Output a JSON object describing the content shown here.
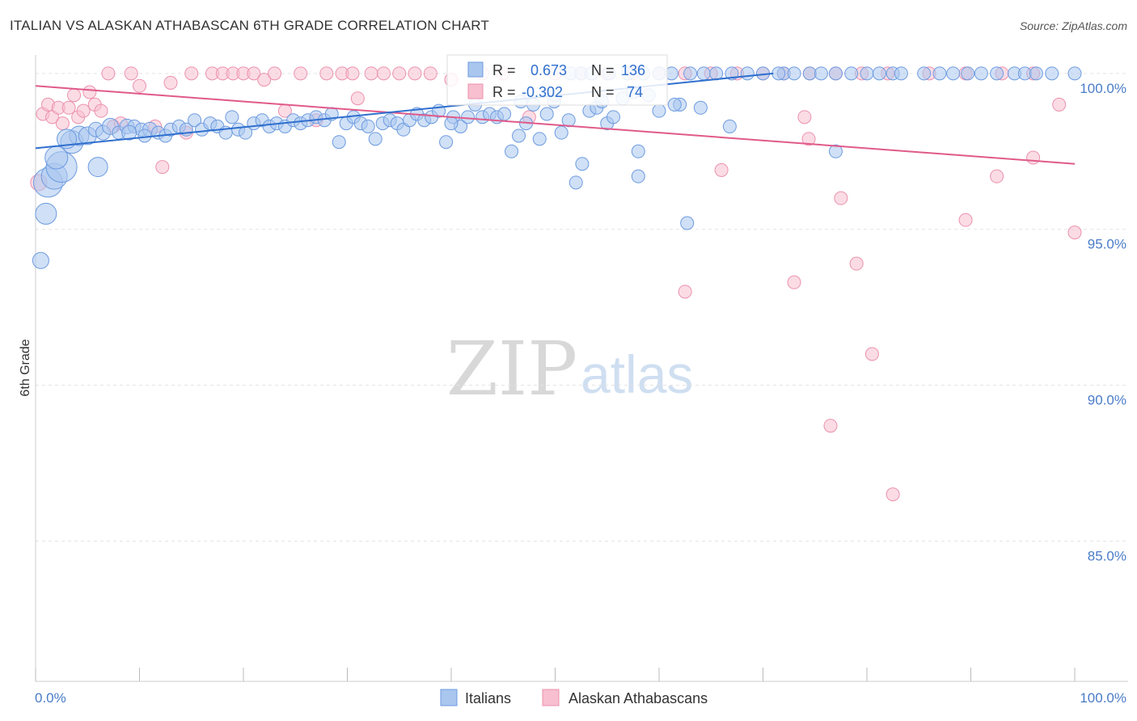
{
  "title": "ITALIAN VS ALASKAN ATHABASCAN 6TH GRADE CORRELATION CHART",
  "source": "Source: ZipAtlas.com",
  "colors": {
    "blue_fill": "#a9c6ee",
    "blue_stroke": "#6d9be0",
    "blue_line": "#2f6fce",
    "pink_fill": "#f7bfcf",
    "pink_stroke": "#ec91ae",
    "pink_line": "#e05a8a",
    "axis_label": "#4a7cc7",
    "grid": "#e3e3e3"
  },
  "legend": {
    "row1": {
      "r_label": "R =",
      "r_value": "0.673",
      "n_label": "N =",
      "n_value": "136"
    },
    "row2": {
      "r_label": "R =",
      "r_value": "-0.302",
      "n_label": "N =",
      "n_value": "74"
    }
  },
  "watermark": {
    "zip": "ZIP",
    "atlas": "atlas"
  },
  "chart_data": {
    "type": "scatter",
    "title": "ITALIAN VS ALASKAN ATHABASCAN 6TH GRADE CORRELATION CHART",
    "xlabel": "",
    "ylabel": "6th Grade",
    "xlim": [
      0,
      100
    ],
    "ylim": [
      80.5,
      100.8
    ],
    "x_tick_labels": [
      "0.0%",
      "100.0%"
    ],
    "y_ticks": [
      100,
      95,
      90,
      85
    ],
    "y_tick_labels": [
      "100.0%",
      "95.0%",
      "90.0%",
      "85.0%"
    ],
    "grid": true,
    "legend_position": "bottom",
    "series": [
      {
        "name": "Italians",
        "color": "#a9c6ee",
        "trend": {
          "x": [
            0,
            71
          ],
          "y": [
            97.6,
            100.0
          ]
        },
        "points": [
          [
            0.5,
            94.0,
            10
          ],
          [
            1.0,
            95.5,
            13
          ],
          [
            1.2,
            96.5,
            18
          ],
          [
            1.8,
            96.7,
            16
          ],
          [
            2.5,
            97.0,
            19
          ],
          [
            3.5,
            97.8,
            14
          ],
          [
            4.2,
            98.0,
            12
          ],
          [
            5.0,
            98.0,
            11
          ],
          [
            5.8,
            98.2,
            9
          ],
          [
            6.5,
            98.1,
            9
          ],
          [
            7.2,
            98.3,
            10
          ],
          [
            8.0,
            98.1,
            8
          ],
          [
            8.8,
            98.3,
            9
          ],
          [
            9.5,
            98.3,
            8
          ],
          [
            10.2,
            98.2,
            8
          ],
          [
            11.0,
            98.2,
            9
          ],
          [
            11.8,
            98.1,
            8
          ],
          [
            12.5,
            98.0,
            8
          ],
          [
            13.0,
            98.2,
            8
          ],
          [
            13.8,
            98.3,
            8
          ],
          [
            14.5,
            98.2,
            8
          ],
          [
            15.3,
            98.5,
            8
          ],
          [
            16.0,
            98.2,
            8
          ],
          [
            16.8,
            98.4,
            8
          ],
          [
            17.5,
            98.3,
            8
          ],
          [
            18.3,
            98.1,
            8
          ],
          [
            18.9,
            98.6,
            8
          ],
          [
            19.5,
            98.2,
            8
          ],
          [
            20.2,
            98.1,
            8
          ],
          [
            21.0,
            98.4,
            8
          ],
          [
            21.8,
            98.5,
            8
          ],
          [
            22.5,
            98.3,
            8
          ],
          [
            23.2,
            98.4,
            8
          ],
          [
            24.0,
            98.3,
            8
          ],
          [
            24.8,
            98.5,
            8
          ],
          [
            25.5,
            98.4,
            8
          ],
          [
            26.2,
            98.5,
            8
          ],
          [
            27.0,
            98.6,
            8
          ],
          [
            27.8,
            98.5,
            8
          ],
          [
            28.5,
            98.7,
            8
          ],
          [
            29.2,
            97.8,
            8
          ],
          [
            29.9,
            98.4,
            8
          ],
          [
            30.6,
            98.6,
            8
          ],
          [
            31.3,
            98.4,
            8
          ],
          [
            32.0,
            98.3,
            8
          ],
          [
            32.7,
            97.9,
            8
          ],
          [
            33.4,
            98.4,
            8
          ],
          [
            34.1,
            98.5,
            8
          ],
          [
            34.8,
            98.4,
            8
          ],
          [
            35.4,
            98.2,
            8
          ],
          [
            36.0,
            98.5,
            8
          ],
          [
            36.7,
            98.7,
            8
          ],
          [
            37.4,
            98.5,
            8
          ],
          [
            38.1,
            98.6,
            8
          ],
          [
            38.8,
            98.8,
            8
          ],
          [
            39.5,
            97.8,
            8
          ],
          [
            40.2,
            98.6,
            8
          ],
          [
            40.9,
            98.3,
            8
          ],
          [
            41.6,
            98.6,
            8
          ],
          [
            42.3,
            99.0,
            8
          ],
          [
            43.0,
            98.6,
            8
          ],
          [
            43.7,
            98.7,
            8
          ],
          [
            44.4,
            98.6,
            8
          ],
          [
            45.1,
            98.7,
            8
          ],
          [
            45.8,
            97.5,
            8
          ],
          [
            46.5,
            98.0,
            8
          ],
          [
            47.2,
            98.4,
            8
          ],
          [
            47.9,
            99.0,
            8
          ],
          [
            48.5,
            97.9,
            8
          ],
          [
            49.2,
            98.7,
            8
          ],
          [
            49.9,
            99.1,
            8
          ],
          [
            50.6,
            98.1,
            8
          ],
          [
            51.3,
            98.5,
            8
          ],
          [
            52.0,
            96.5,
            8
          ],
          [
            52.6,
            97.1,
            8
          ],
          [
            53.3,
            98.8,
            8
          ],
          [
            54.0,
            98.9,
            8
          ],
          [
            55.0,
            98.4,
            8
          ],
          [
            55.6,
            98.6,
            8
          ],
          [
            46.7,
            99.1,
            8
          ],
          [
            58.0,
            97.5,
            8
          ],
          [
            58.0,
            96.7,
            8
          ],
          [
            62.7,
            95.2,
            8
          ],
          [
            66.8,
            98.3,
            8
          ],
          [
            72.0,
            100.0,
            8
          ],
          [
            50.0,
            99.3,
            8
          ],
          [
            51.5,
            100.0,
            8
          ],
          [
            52.5,
            100.0,
            8
          ],
          [
            53.5,
            100.0,
            8
          ],
          [
            55.2,
            100.0,
            8
          ],
          [
            57.0,
            100.0,
            8
          ],
          [
            58.5,
            100.0,
            8
          ],
          [
            60.0,
            100.0,
            8
          ],
          [
            61.2,
            100.0,
            8
          ],
          [
            63.0,
            100.0,
            8
          ],
          [
            64.3,
            100.0,
            8
          ],
          [
            65.5,
            100.0,
            8
          ],
          [
            67.0,
            100.0,
            8
          ],
          [
            68.5,
            100.0,
            8
          ],
          [
            70.0,
            100.0,
            8
          ],
          [
            71.5,
            100.0,
            8
          ],
          [
            73.0,
            100.0,
            8
          ],
          [
            74.5,
            100.0,
            8
          ],
          [
            75.6,
            100.0,
            8
          ],
          [
            77.0,
            100.0,
            8
          ],
          [
            78.5,
            100.0,
            8
          ],
          [
            80.0,
            100.0,
            8
          ],
          [
            81.2,
            100.0,
            8
          ],
          [
            82.5,
            100.0,
            8
          ],
          [
            83.3,
            100.0,
            8
          ],
          [
            85.5,
            100.0,
            8
          ],
          [
            87.0,
            100.0,
            8
          ],
          [
            88.3,
            100.0,
            8
          ],
          [
            89.7,
            100.0,
            8
          ],
          [
            91.0,
            100.0,
            8
          ],
          [
            92.5,
            100.0,
            8
          ],
          [
            94.2,
            100.0,
            8
          ],
          [
            95.2,
            100.0,
            8
          ],
          [
            96.3,
            100.0,
            8
          ],
          [
            97.8,
            100.0,
            8
          ],
          [
            100.0,
            100.0,
            8
          ],
          [
            77.0,
            97.5,
            8
          ],
          [
            62.0,
            99.0,
            8
          ],
          [
            64.0,
            98.9,
            8
          ],
          [
            60.0,
            98.8,
            8
          ],
          [
            56.5,
            99.2,
            8
          ],
          [
            59.0,
            99.3,
            8
          ],
          [
            61.5,
            99.0,
            8
          ],
          [
            54.5,
            99.1,
            8
          ],
          [
            57.5,
            99.4,
            8
          ],
          [
            6.0,
            97.0,
            12
          ],
          [
            2.0,
            97.3,
            14
          ],
          [
            3.0,
            97.9,
            12
          ],
          [
            9.0,
            98.1,
            9
          ],
          [
            10.5,
            98.0,
            8
          ],
          [
            40.0,
            98.4,
            8
          ]
        ]
      },
      {
        "name": "Alaskan Athabascans",
        "color": "#f7bfcf",
        "trend": {
          "x": [
            0,
            100
          ],
          "y": [
            99.6,
            97.1
          ]
        },
        "points": [
          [
            0.3,
            96.5,
            10
          ],
          [
            0.7,
            98.7,
            8
          ],
          [
            1.2,
            99.0,
            8
          ],
          [
            1.6,
            98.6,
            8
          ],
          [
            2.2,
            98.9,
            8
          ],
          [
            2.6,
            98.4,
            8
          ],
          [
            3.2,
            98.9,
            8
          ],
          [
            3.7,
            99.3,
            8
          ],
          [
            4.1,
            98.6,
            8
          ],
          [
            4.6,
            98.8,
            8
          ],
          [
            5.2,
            99.4,
            8
          ],
          [
            5.7,
            99.0,
            8
          ],
          [
            6.3,
            98.8,
            8
          ],
          [
            7.0,
            100.0,
            8
          ],
          [
            7.5,
            98.3,
            8
          ],
          [
            8.2,
            98.4,
            8
          ],
          [
            9.2,
            100.0,
            8
          ],
          [
            10.0,
            99.6,
            8
          ],
          [
            11.5,
            98.3,
            8
          ],
          [
            12.2,
            97.0,
            8
          ],
          [
            13.0,
            99.7,
            8
          ],
          [
            14.5,
            98.1,
            8
          ],
          [
            15.0,
            100.0,
            8
          ],
          [
            17.0,
            100.0,
            8
          ],
          [
            18.0,
            100.0,
            8
          ],
          [
            19.0,
            100.0,
            8
          ],
          [
            20.0,
            100.0,
            8
          ],
          [
            21.0,
            100.0,
            8
          ],
          [
            22.0,
            99.8,
            8
          ],
          [
            23.0,
            100.0,
            8
          ],
          [
            24.0,
            98.8,
            8
          ],
          [
            25.5,
            100.0,
            8
          ],
          [
            27.0,
            98.5,
            8
          ],
          [
            28.0,
            100.0,
            8
          ],
          [
            29.5,
            100.0,
            8
          ],
          [
            30.5,
            100.0,
            8
          ],
          [
            31.0,
            99.2,
            8
          ],
          [
            32.3,
            100.0,
            8
          ],
          [
            33.5,
            100.0,
            8
          ],
          [
            35.0,
            100.0,
            8
          ],
          [
            36.5,
            100.0,
            8
          ],
          [
            38.0,
            100.0,
            8
          ],
          [
            40.0,
            99.8,
            8
          ],
          [
            43.0,
            100.0,
            8
          ],
          [
            45.0,
            100.0,
            8
          ],
          [
            47.5,
            98.6,
            8
          ],
          [
            50.0,
            100.0,
            8
          ],
          [
            52.5,
            100.0,
            8
          ],
          [
            55.0,
            100.0,
            8
          ],
          [
            57.5,
            100.0,
            8
          ],
          [
            60.0,
            100.0,
            8
          ],
          [
            62.5,
            100.0,
            8
          ],
          [
            65.0,
            100.0,
            8
          ],
          [
            67.5,
            100.0,
            8
          ],
          [
            70.0,
            100.0,
            8
          ],
          [
            72.0,
            100.0,
            8
          ],
          [
            74.5,
            100.0,
            8
          ],
          [
            77.0,
            100.0,
            8
          ],
          [
            79.5,
            100.0,
            8
          ],
          [
            82.0,
            100.0,
            8
          ],
          [
            86.0,
            100.0,
            8
          ],
          [
            89.5,
            100.0,
            8
          ],
          [
            93.0,
            100.0,
            8
          ],
          [
            96.0,
            100.0,
            8
          ],
          [
            98.5,
            99.0,
            8
          ],
          [
            100.0,
            94.9,
            8
          ],
          [
            66.0,
            96.9,
            8
          ],
          [
            74.0,
            98.6,
            8
          ],
          [
            74.4,
            97.9,
            8
          ],
          [
            77.5,
            96.0,
            8
          ],
          [
            62.5,
            93.0,
            8
          ],
          [
            73.0,
            93.3,
            8
          ],
          [
            79.0,
            93.9,
            8
          ],
          [
            80.5,
            91.0,
            8
          ],
          [
            76.5,
            88.7,
            8
          ],
          [
            82.5,
            86.5,
            8
          ],
          [
            89.5,
            95.3,
            8
          ],
          [
            92.5,
            96.7,
            8
          ],
          [
            96.0,
            97.3,
            8
          ]
        ]
      }
    ]
  }
}
